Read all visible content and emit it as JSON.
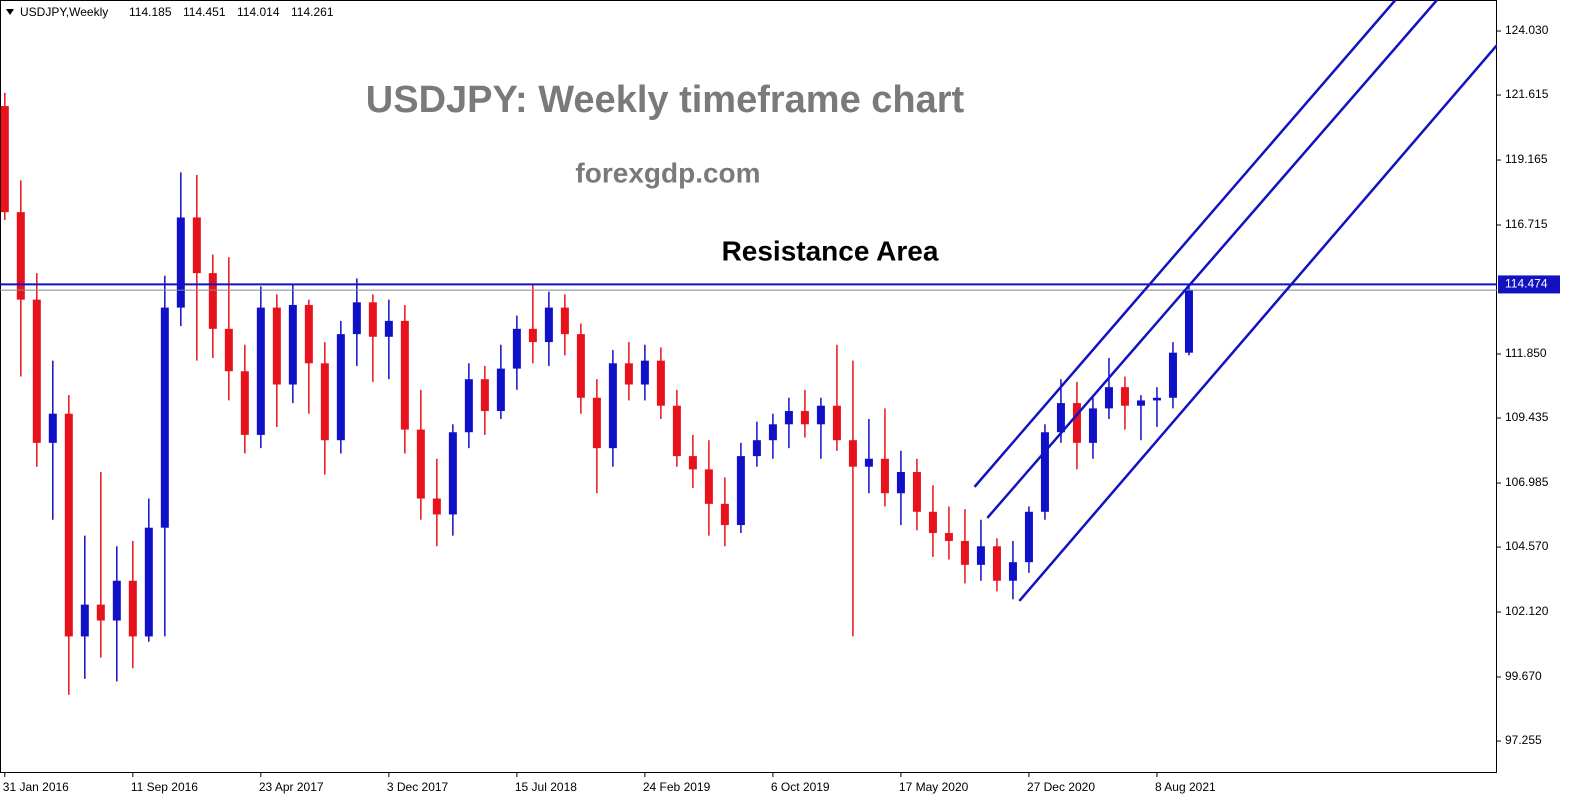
{
  "chart_data": {
    "type": "candlestick",
    "symbol": "USDJPY,Weekly",
    "header_values": [
      114.185,
      114.451,
      114.014,
      114.261
    ],
    "title": "USDJPY: Weekly timeframe chart",
    "subtitle": "forexgdp.com",
    "annotation": "Resistance Area",
    "resistance_level": 114.474,
    "bull_color": "#1010c8",
    "bear_color": "#e8121d",
    "line_color": "#1212c0",
    "categories": [
      "31 Jan 2016",
      null,
      null,
      null,
      null,
      null,
      null,
      null,
      "11 Sep 2016",
      null,
      null,
      null,
      null,
      null,
      null,
      null,
      "23 Apr 2017",
      null,
      null,
      null,
      null,
      null,
      null,
      null,
      "3 Dec 2017",
      null,
      null,
      null,
      null,
      null,
      null,
      null,
      "15 Jul 2018",
      null,
      null,
      null,
      null,
      null,
      null,
      null,
      "24 Feb 2019",
      null,
      null,
      null,
      null,
      null,
      null,
      null,
      "6 Oct 2019",
      null,
      null,
      null,
      null,
      null,
      null,
      null,
      "17 May 2020",
      null,
      null,
      null,
      null,
      null,
      null,
      null,
      "27 Dec 2020",
      null,
      null,
      null,
      null,
      null,
      null,
      null,
      "8 Aug 2021",
      null,
      null
    ],
    "candles": [
      [
        121.2,
        121.7,
        116.9,
        117.2
      ],
      [
        117.2,
        118.4,
        111.0,
        113.9
      ],
      [
        113.9,
        114.9,
        107.6,
        108.5
      ],
      [
        108.5,
        111.6,
        105.6,
        109.6
      ],
      [
        109.6,
        110.3,
        99.0,
        101.2
      ],
      [
        101.2,
        105.0,
        99.6,
        102.4
      ],
      [
        102.4,
        107.4,
        100.4,
        101.8
      ],
      [
        101.8,
        104.6,
        99.5,
        103.3
      ],
      [
        103.3,
        104.8,
        100.0,
        101.2
      ],
      [
        101.2,
        106.4,
        101.0,
        105.3
      ],
      [
        105.3,
        114.8,
        101.2,
        113.6
      ],
      [
        113.6,
        118.7,
        112.9,
        117.0
      ],
      [
        117.0,
        118.6,
        111.6,
        114.9
      ],
      [
        114.9,
        115.6,
        111.7,
        112.8
      ],
      [
        112.8,
        115.5,
        110.1,
        111.2
      ],
      [
        111.2,
        112.2,
        108.1,
        108.8
      ],
      [
        108.8,
        114.4,
        108.3,
        113.6
      ],
      [
        113.6,
        114.1,
        109.1,
        110.7
      ],
      [
        110.7,
        114.5,
        110.0,
        113.7
      ],
      [
        113.7,
        113.9,
        109.6,
        111.5
      ],
      [
        111.5,
        112.3,
        107.3,
        108.6
      ],
      [
        108.6,
        113.1,
        108.1,
        112.6
      ],
      [
        112.6,
        114.7,
        111.4,
        113.8
      ],
      [
        113.8,
        114.1,
        110.8,
        112.5
      ],
      [
        112.5,
        113.9,
        110.9,
        113.1
      ],
      [
        113.1,
        113.7,
        108.1,
        109.0
      ],
      [
        109.0,
        110.5,
        105.6,
        106.4
      ],
      [
        106.4,
        107.9,
        104.6,
        105.8
      ],
      [
        105.8,
        109.2,
        105.0,
        108.9
      ],
      [
        108.9,
        111.5,
        108.3,
        110.9
      ],
      [
        110.9,
        111.4,
        108.8,
        109.7
      ],
      [
        109.7,
        112.2,
        109.4,
        111.3
      ],
      [
        111.3,
        113.3,
        110.5,
        112.8
      ],
      [
        112.8,
        114.5,
        111.5,
        112.3
      ],
      [
        112.3,
        114.2,
        111.4,
        113.6
      ],
      [
        113.6,
        114.1,
        111.8,
        112.6
      ],
      [
        112.6,
        113.0,
        109.6,
        110.2
      ],
      [
        110.2,
        110.9,
        106.6,
        108.3
      ],
      [
        108.3,
        112.0,
        107.6,
        111.5
      ],
      [
        111.5,
        112.3,
        110.1,
        110.7
      ],
      [
        110.7,
        112.2,
        110.1,
        111.6
      ],
      [
        111.6,
        112.1,
        109.4,
        109.9
      ],
      [
        109.9,
        110.5,
        107.6,
        108.0
      ],
      [
        108.0,
        108.8,
        106.8,
        107.5
      ],
      [
        107.5,
        108.6,
        105.0,
        106.2
      ],
      [
        106.2,
        107.2,
        104.6,
        105.4
      ],
      [
        105.4,
        108.5,
        105.1,
        108.0
      ],
      [
        108.0,
        109.3,
        107.6,
        108.6
      ],
      [
        108.6,
        109.6,
        107.9,
        109.2
      ],
      [
        109.2,
        110.2,
        108.3,
        109.7
      ],
      [
        109.7,
        110.5,
        108.7,
        109.2
      ],
      [
        109.2,
        110.2,
        107.9,
        109.9
      ],
      [
        109.9,
        112.2,
        108.2,
        108.6
      ],
      [
        108.6,
        111.6,
        101.2,
        107.6
      ],
      [
        107.6,
        109.4,
        106.6,
        107.9
      ],
      [
        107.9,
        109.8,
        106.1,
        106.6
      ],
      [
        106.6,
        108.2,
        105.4,
        107.4
      ],
      [
        107.4,
        107.9,
        105.2,
        105.9
      ],
      [
        105.9,
        106.9,
        104.2,
        105.1
      ],
      [
        105.1,
        106.1,
        104.1,
        104.8
      ],
      [
        104.8,
        106.0,
        103.2,
        103.9
      ],
      [
        103.9,
        105.6,
        103.3,
        104.6
      ],
      [
        104.6,
        104.9,
        102.9,
        103.3
      ],
      [
        103.3,
        104.8,
        102.6,
        104.0
      ],
      [
        104.0,
        106.1,
        103.6,
        105.9
      ],
      [
        105.9,
        109.2,
        105.6,
        108.9
      ],
      [
        108.9,
        110.9,
        108.5,
        110.0
      ],
      [
        110.0,
        110.8,
        107.5,
        108.5
      ],
      [
        108.5,
        110.2,
        107.9,
        109.8
      ],
      [
        109.8,
        111.7,
        109.4,
        110.6
      ],
      [
        110.6,
        111.0,
        109.0,
        109.9
      ],
      [
        109.9,
        110.3,
        108.6,
        110.1
      ],
      [
        110.1,
        110.6,
        109.1,
        110.2
      ],
      [
        110.2,
        112.3,
        109.8,
        111.9
      ],
      [
        111.9,
        114.5,
        111.8,
        114.261
      ]
    ],
    "trendlines": [
      {
        "x": [
          60.6,
          86.9
        ],
        "y": [
          106.84,
          125.2
        ]
      },
      {
        "x": [
          61.4,
          89.5
        ],
        "y": [
          105.67,
          125.2
        ]
      },
      {
        "x": [
          63.4,
          93.25
        ],
        "y": [
          102.54,
          123.5
        ]
      }
    ],
    "xlim": [
      -0.3,
      93.25
    ],
    "ylim": [
      96.05,
      125.2
    ],
    "yticks": [
      {
        "value": 124.03,
        "label": "124.030"
      },
      121.615,
      119.165,
      116.715,
      {
        "value": 111.85,
        "label": "111.850"
      },
      109.435,
      106.985,
      {
        "value": 104.57,
        "label": "104.570"
      },
      {
        "value": 102.12,
        "label": "102.120"
      },
      {
        "value": 99.67,
        "label": "99.670"
      },
      97.255
    ]
  }
}
